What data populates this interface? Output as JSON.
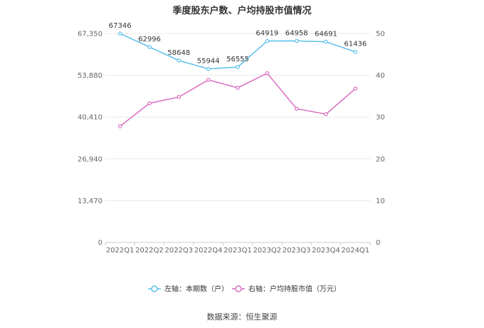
{
  "title": "季度股东户数、户均持股市值情况",
  "source": "数据来源：恒生聚源",
  "colors": {
    "left_series": "#5bc0eb",
    "right_series": "#d96ec0",
    "grid": "#e8e8e8",
    "axis": "#cccccc"
  },
  "chart_data": {
    "type": "line",
    "categories": [
      "2022Q1",
      "2022Q2",
      "2022Q3",
      "2022Q4",
      "2023Q1",
      "2023Q2",
      "2023Q3",
      "2023Q4",
      "2024Q1"
    ],
    "left_axis": {
      "ylim": [
        0,
        67350
      ],
      "ticks": [
        "0",
        "13,470",
        "26,940",
        "40,410",
        "53,880",
        "67,350"
      ]
    },
    "right_axis": {
      "ylim": [
        0,
        50
      ],
      "ticks": [
        "0",
        "10",
        "20",
        "30",
        "40",
        "50"
      ]
    },
    "series": [
      {
        "name": "左轴：本期数（户）",
        "axis": "left",
        "values": [
          67346,
          62996,
          58648,
          55944,
          56555,
          64919,
          64958,
          64691,
          61436
        ],
        "labels": [
          "67346",
          "62996",
          "58648",
          "55944",
          "56555",
          "64919",
          "64958",
          "64691",
          "61436"
        ]
      },
      {
        "name": "右轴：户均持股市值（万元）",
        "axis": "right",
        "values": [
          27.8,
          33.3,
          34.8,
          38.9,
          37.0,
          40.5,
          32.0,
          30.7,
          36.8
        ]
      }
    ],
    "grid": true,
    "legend_position": "bottom"
  }
}
